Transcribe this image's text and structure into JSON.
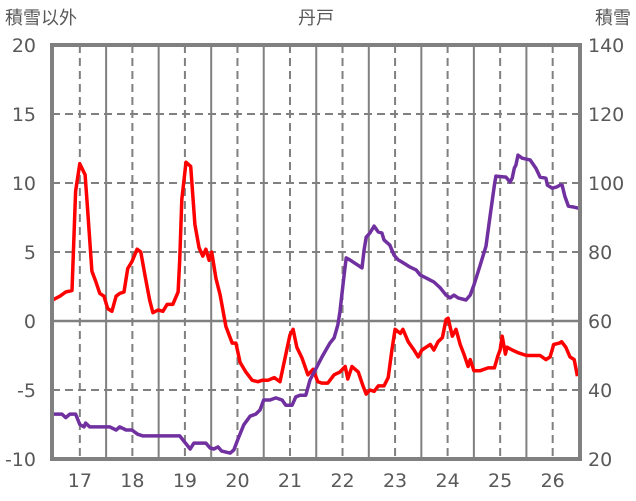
{
  "chart_data": {
    "type": "line",
    "title": "丹戸",
    "ylabel_left": "積雪以外",
    "ylabel_right": "積雪",
    "xlim": [
      16.47,
      26.52
    ],
    "ylim_left": [
      -10,
      20
    ],
    "ylim_right": [
      20,
      140
    ],
    "x_ticks": [
      17,
      18,
      19,
      20,
      21,
      22,
      23,
      24,
      25,
      26
    ],
    "x_tick_labels": [
      "17",
      "18",
      "19",
      "20",
      "21",
      "22",
      "23",
      "24",
      "25",
      "26"
    ],
    "y_left_ticks": [
      20,
      15,
      10,
      5,
      0,
      -5,
      -10
    ],
    "y_left_tick_labels": [
      "20",
      "15",
      "10",
      "5",
      "0",
      "-5",
      "-10"
    ],
    "y_right_ticks": [
      140,
      120,
      100,
      80,
      60,
      40,
      20
    ],
    "y_right_tick_labels": [
      "140",
      "120",
      "100",
      "80",
      "60",
      "40",
      "20"
    ],
    "grid": true,
    "series": [
      {
        "name": "積雪以外",
        "axis": "left",
        "color": "#FF0000",
        "x": [
          16.47,
          16.62,
          16.73,
          16.85,
          16.92,
          17.0,
          17.1,
          17.15,
          17.23,
          17.3,
          17.38,
          17.46,
          17.53,
          17.61,
          17.69,
          17.76,
          17.84,
          17.91,
          17.99,
          18.09,
          18.16,
          18.24,
          18.33,
          18.39,
          18.49,
          18.58,
          18.66,
          18.77,
          18.87,
          18.9,
          18.94,
          19.02,
          19.11,
          19.19,
          19.27,
          19.34,
          19.4,
          19.46,
          19.51,
          19.59,
          19.67,
          19.78,
          19.9,
          19.97,
          20.05,
          20.16,
          20.28,
          20.39,
          20.47,
          20.58,
          20.7,
          20.81,
          20.9,
          21.0,
          21.06,
          21.13,
          21.23,
          21.34,
          21.44,
          21.53,
          21.61,
          21.72,
          21.84,
          21.95,
          22.05,
          22.1,
          22.18,
          22.3,
          22.39,
          22.45,
          22.52,
          22.6,
          22.68,
          22.79,
          22.87,
          22.94,
          23.0,
          23.1,
          23.15,
          23.25,
          23.36,
          23.44,
          23.51,
          23.59,
          23.67,
          23.74,
          23.82,
          23.9,
          23.97,
          24.01,
          24.09,
          24.16,
          24.24,
          24.31,
          24.39,
          24.43,
          24.5,
          24.62,
          24.77,
          24.89,
          24.96,
          25.0,
          25.04,
          25.1,
          25.13,
          25.23,
          25.34,
          25.5,
          25.65,
          25.76,
          25.87,
          25.95,
          26.02,
          26.13,
          26.17,
          26.25,
          26.33,
          26.41,
          26.47
        ],
        "y": [
          1.5,
          1.8,
          2.1,
          2.2,
          9.4,
          11.4,
          10.6,
          8,
          3.6,
          2.9,
          2,
          1.8,
          0.9,
          0.7,
          1.8,
          2,
          2.1,
          3.8,
          4.3,
          5.2,
          5,
          3.3,
          1.5,
          0.6,
          0.8,
          0.7,
          1.2,
          1.2,
          2.1,
          4.4,
          8.8,
          11.5,
          11.2,
          7,
          5.3,
          4.7,
          5.2,
          4.4,
          5,
          3.1,
          1.9,
          -0.4,
          -1.6,
          -1.6,
          -3,
          -3.7,
          -4.3,
          -4.4,
          -4.3,
          -4.3,
          -4.1,
          -4.4,
          -2.8,
          -1,
          -0.6,
          -1.9,
          -2.7,
          -3.9,
          -3.5,
          -4.4,
          -4.5,
          -4.5,
          -3.9,
          -3.7,
          -3.3,
          -4.2,
          -3.3,
          -3.7,
          -4.7,
          -5.3,
          -5,
          -5.1,
          -4.7,
          -4.7,
          -4.1,
          -2.1,
          -0.6,
          -0.9,
          -0.6,
          -1.5,
          -2.1,
          -2.6,
          -2.1,
          -1.9,
          -1.7,
          -2.1,
          -1.5,
          -1.2,
          0.1,
          0.2,
          -1.1,
          -0.6,
          -1.7,
          -2.4,
          -3.3,
          -2.8,
          -3.6,
          -3.6,
          -3.4,
          -3.4,
          -2.5,
          -2.1,
          -1.1,
          -2.4,
          -1.9,
          -2.1,
          -2.3,
          -2.5,
          -2.5,
          -2.5,
          -2.8,
          -2.6,
          -1.7,
          -1.6,
          -1.5,
          -1.9,
          -2.6,
          -2.8,
          -4
        ]
      },
      {
        "name": "積雪",
        "axis": "right",
        "color": "#7030A0",
        "x": [
          16.47,
          16.66,
          16.73,
          16.81,
          16.92,
          17.0,
          17.08,
          17.11,
          17.19,
          17.38,
          17.57,
          17.69,
          17.76,
          17.88,
          17.99,
          18.1,
          18.2,
          18.33,
          18.52,
          18.71,
          18.9,
          18.98,
          19.1,
          19.17,
          19.29,
          19.4,
          19.48,
          19.55,
          19.63,
          19.7,
          19.86,
          19.93,
          20.01,
          20.12,
          20.24,
          20.35,
          20.43,
          20.5,
          20.62,
          20.73,
          20.85,
          20.92,
          21.04,
          21.11,
          21.19,
          21.3,
          21.38,
          21.5,
          21.61,
          21.76,
          21.84,
          21.91,
          21.95,
          22.03,
          22.07,
          22.14,
          22.26,
          22.37,
          22.41,
          22.45,
          22.52,
          22.6,
          22.68,
          22.75,
          22.79,
          22.9,
          22.98,
          23.06,
          23.13,
          23.29,
          23.4,
          23.48,
          23.59,
          23.74,
          23.86,
          23.97,
          24.05,
          24.12,
          24.2,
          24.35,
          24.43,
          24.5,
          24.62,
          24.73,
          24.81,
          24.89,
          24.92,
          25.11,
          25.19,
          25.23,
          25.27,
          25.3,
          25.34,
          25.42,
          25.57,
          25.68,
          25.76,
          25.87,
          25.9,
          25.99,
          26.07,
          26.14,
          26.18,
          26.23,
          26.3,
          26.41,
          26.49
        ],
        "y": [
          33,
          33,
          32,
          33,
          33,
          30,
          29.3,
          30.4,
          29.3,
          29.3,
          29.3,
          28.4,
          29.3,
          28.4,
          28.4,
          27.2,
          26.7,
          26.7,
          26.7,
          26.7,
          26.7,
          25.2,
          22.9,
          24.6,
          24.6,
          24.6,
          23.2,
          22.9,
          23.5,
          22.3,
          21.7,
          22.6,
          25.8,
          29.9,
          32.4,
          33,
          34.2,
          37.1,
          37.1,
          37.7,
          37.1,
          35.6,
          35.6,
          38,
          38.5,
          38.5,
          42.9,
          46.4,
          49.6,
          53.6,
          55.1,
          58.8,
          62.6,
          73.3,
          78.3,
          77.7,
          76.5,
          75.4,
          80.6,
          84.3,
          85.5,
          87.5,
          85.8,
          85.5,
          83.5,
          82,
          79.1,
          77.7,
          77.1,
          75.6,
          74.8,
          73.3,
          72.5,
          71.3,
          69.6,
          67.5,
          66.7,
          67.5,
          66.7,
          66.1,
          67.5,
          70.4,
          76.2,
          81.7,
          90.7,
          99.4,
          102,
          101.7,
          100.3,
          101.4,
          104.3,
          105.2,
          108.1,
          107.2,
          106.7,
          104.3,
          101.7,
          101.4,
          99.4,
          98.5,
          98.8,
          99.4,
          99.4,
          96.2,
          93.3,
          93,
          92.7
        ]
      }
    ]
  }
}
